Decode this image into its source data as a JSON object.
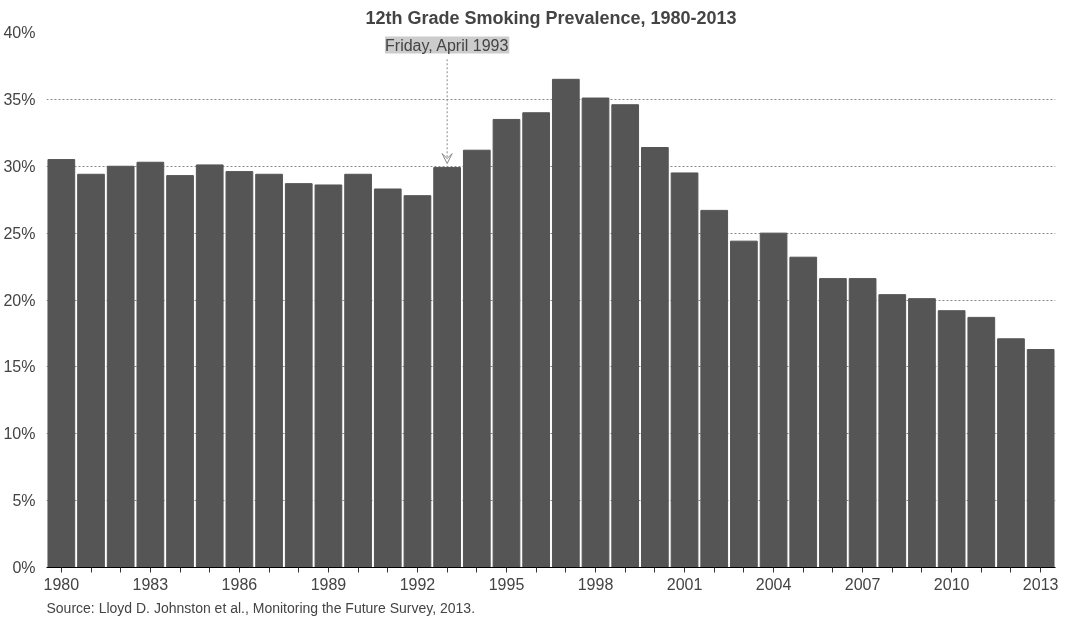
{
  "chart_data": {
    "type": "bar",
    "title": "12th Grade Smoking Prevalence, 1980-2013",
    "x": [
      1980,
      1981,
      1982,
      1983,
      1984,
      1985,
      1986,
      1987,
      1988,
      1989,
      1990,
      1991,
      1992,
      1993,
      1994,
      1995,
      1996,
      1997,
      1998,
      1999,
      2000,
      2001,
      2002,
      2003,
      2004,
      2005,
      2006,
      2007,
      2008,
      2009,
      2010,
      2011,
      2012,
      2013
    ],
    "xlim": [
      1979.5,
      2013.5
    ],
    "xticks": [
      1980,
      {
        "value": 1981,
        "label": null
      },
      {
        "value": 1982,
        "label": null
      },
      1983,
      {
        "value": 1984,
        "label": null
      },
      {
        "value": 1985,
        "label": null
      },
      1986,
      {
        "value": 1987,
        "label": null
      },
      {
        "value": 1988,
        "label": null
      },
      1989,
      {
        "value": 1990,
        "label": null
      },
      {
        "value": 1991,
        "label": null
      },
      1992,
      {
        "value": 1993,
        "label": null
      },
      {
        "value": 1994,
        "label": null
      },
      1995,
      {
        "value": 1996,
        "label": null
      },
      {
        "value": 1997,
        "label": null
      },
      1998,
      {
        "value": 1999,
        "label": null
      },
      {
        "value": 2000,
        "label": null
      },
      2001,
      {
        "value": 2002,
        "label": null
      },
      {
        "value": 2003,
        "label": null
      },
      2004,
      {
        "value": 2005,
        "label": null
      },
      {
        "value": 2006,
        "label": null
      },
      2007,
      {
        "value": 2008,
        "label": null
      },
      {
        "value": 2009,
        "label": null
      },
      2010,
      {
        "value": 2011,
        "label": null
      },
      {
        "value": 2012,
        "label": null
      },
      2013
    ],
    "values": [
      30.5,
      29.4,
      30.0,
      30.3,
      29.3,
      30.1,
      29.6,
      29.4,
      28.7,
      28.6,
      29.4,
      28.3,
      27.8,
      29.9,
      31.2,
      33.5,
      34.0,
      36.5,
      35.1,
      34.6,
      31.4,
      29.5,
      26.7,
      24.4,
      25.0,
      23.2,
      21.6,
      21.6,
      20.4,
      20.1,
      19.2,
      18.7,
      17.1,
      16.3
    ],
    "color": "#555555",
    "ylim": [
      0,
      40
    ],
    "yticks": [
      {
        "value": 0,
        "label": "0%"
      },
      {
        "value": 5,
        "label": "5%"
      },
      {
        "value": 10,
        "label": "10%"
      },
      {
        "value": 15,
        "label": "15%"
      },
      {
        "value": 20,
        "label": "20%"
      },
      {
        "value": 25,
        "label": "25%"
      },
      {
        "value": 30,
        "label": "30%"
      },
      {
        "value": 35,
        "label": "35%"
      },
      {
        "value": 40,
        "label": "40%"
      }
    ],
    "grid": "y",
    "annotations": [
      {
        "text": "Friday, April 1993",
        "x": 1993,
        "y": 29.9
      },
      "Source: Lloyd D. Johnston et al., Monitoring the Future Survey, 2013."
    ]
  }
}
